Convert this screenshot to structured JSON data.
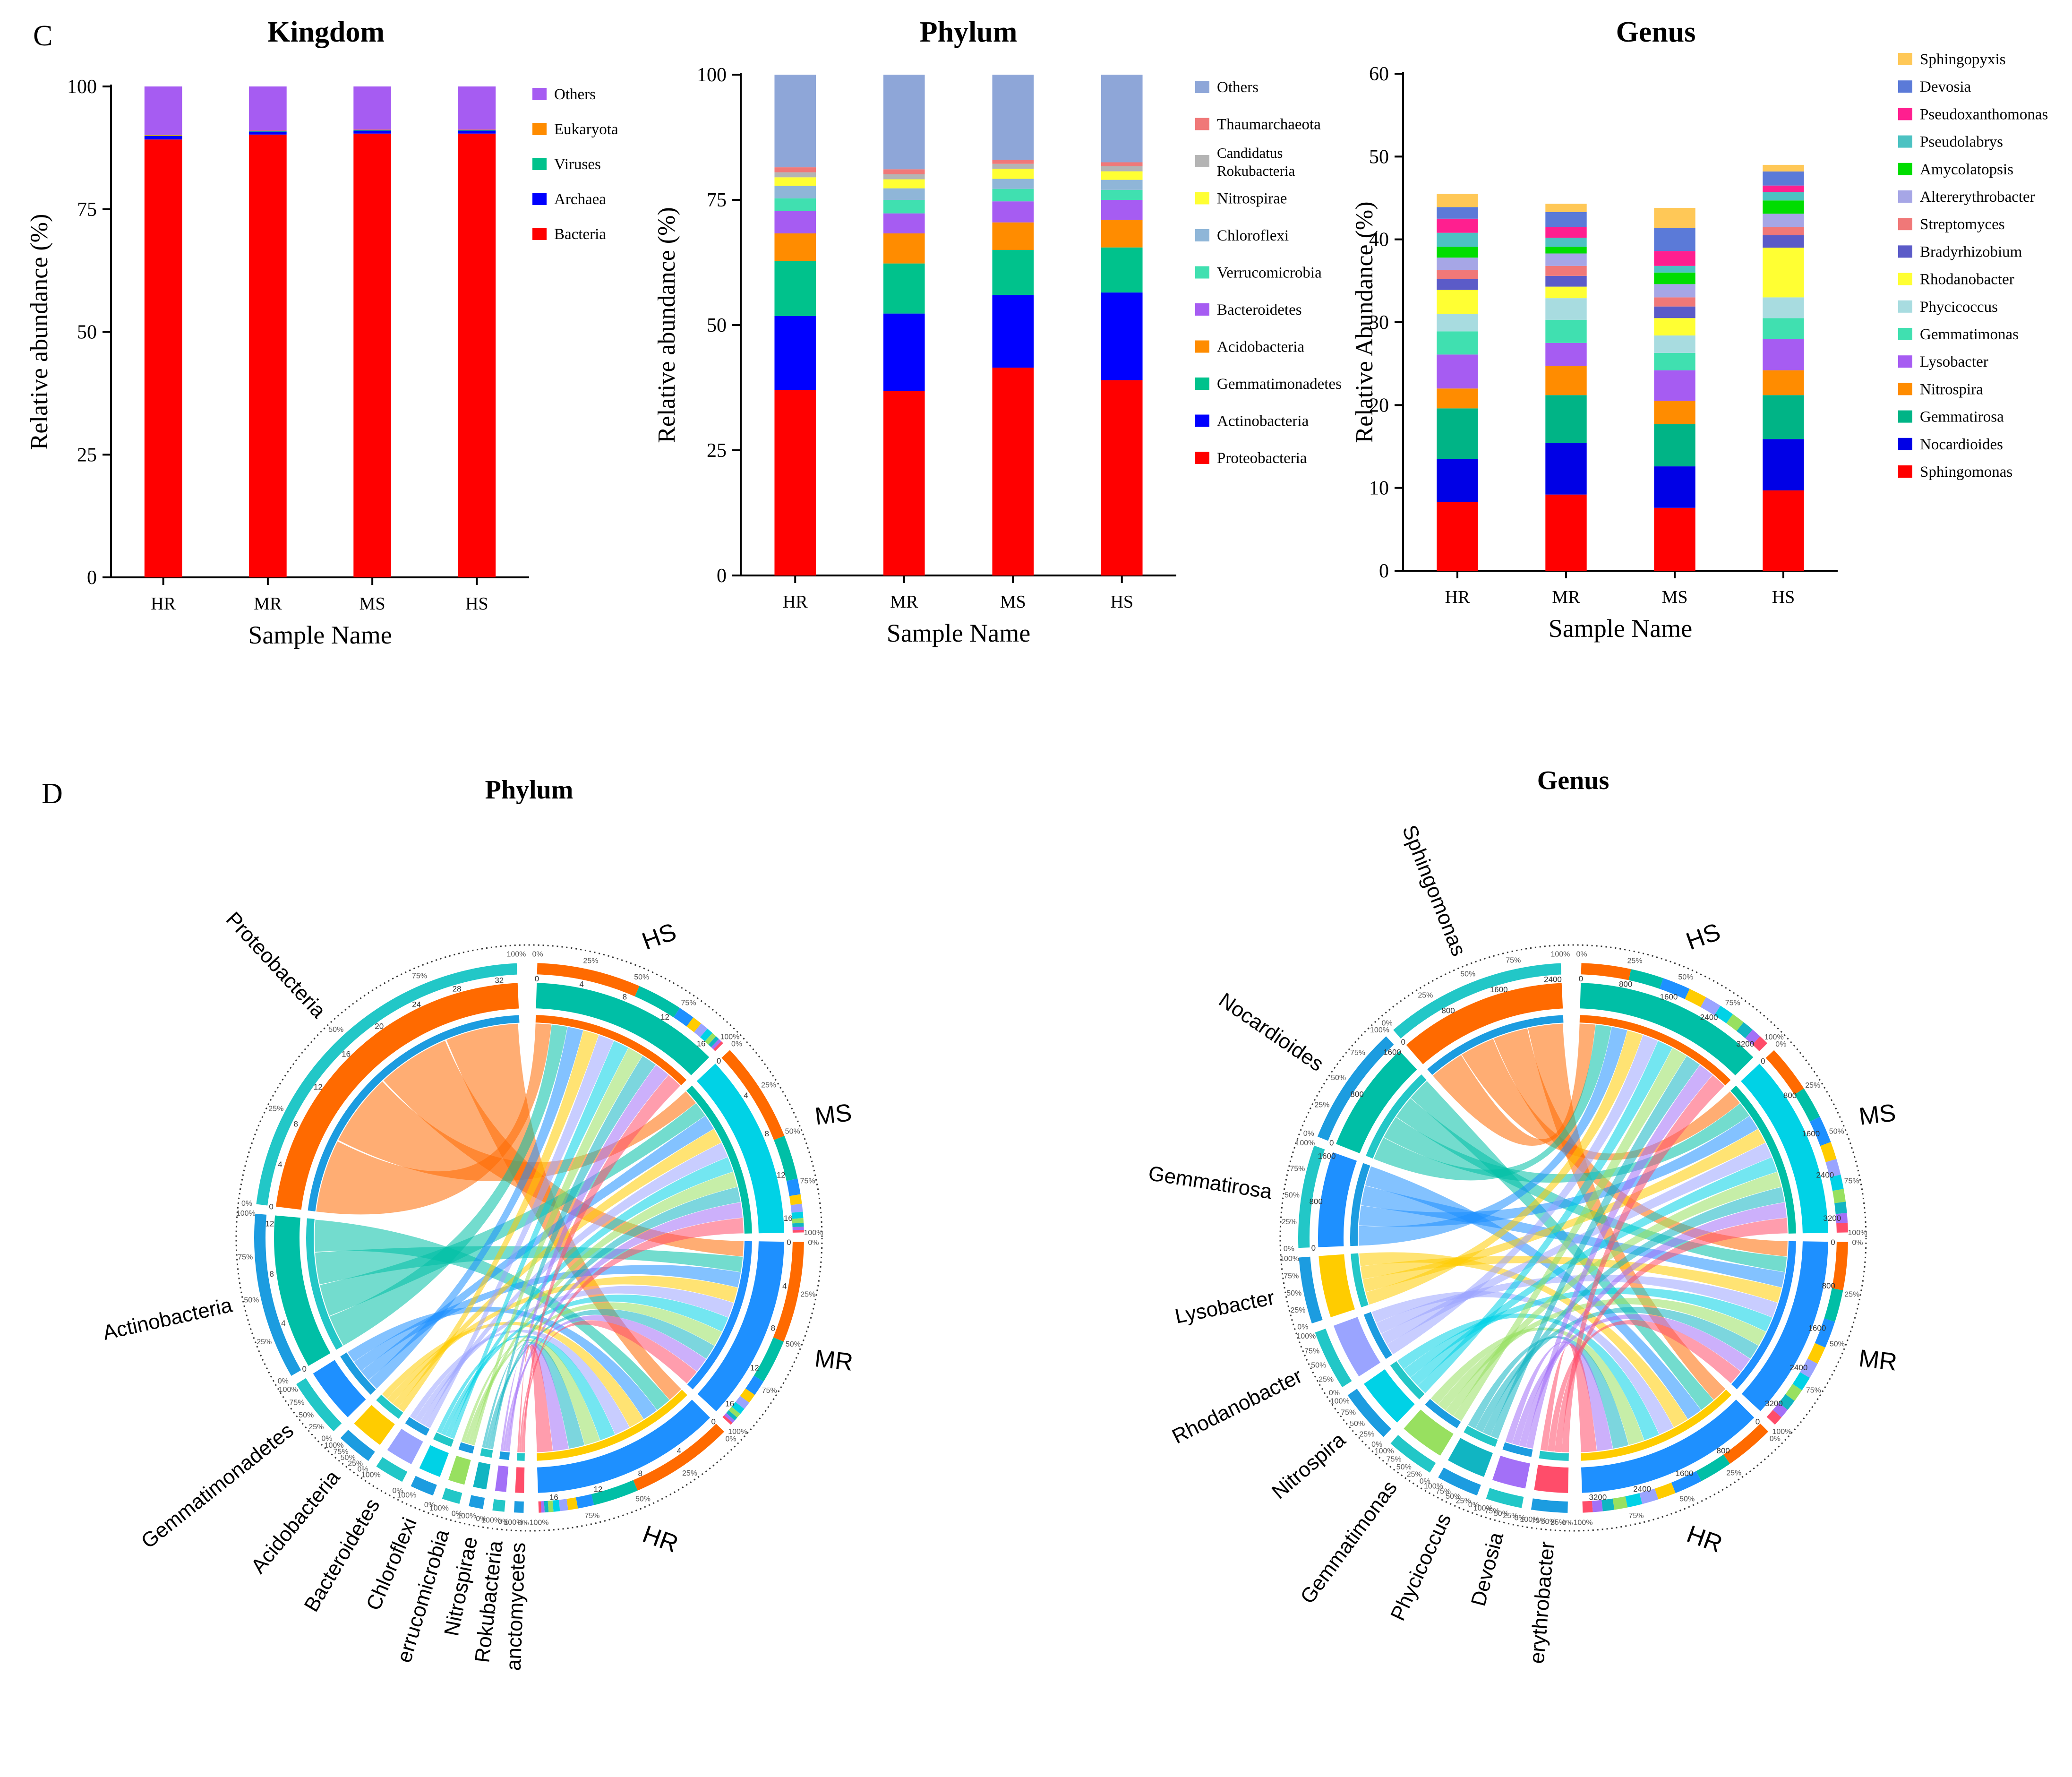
{
  "panel_labels": {
    "c": "C",
    "d": "D"
  },
  "chart_data": [
    {
      "type": "bar",
      "stacked": true,
      "title": "Kingdom",
      "xlabel": "Sample Name",
      "ylabel": "Relative abundance (%)",
      "ylim": [
        0,
        100
      ],
      "yticks": [
        0,
        25,
        50,
        75,
        100
      ],
      "categories": [
        "HR",
        "MR",
        "MS",
        "HS"
      ],
      "series": [
        {
          "name": "Bacteria",
          "color": "#ff0000",
          "values": [
            89.2,
            90.2,
            90.4,
            90.4
          ]
        },
        {
          "name": "Archaea",
          "color": "#0000ff",
          "values": [
            0.7,
            0.6,
            0.6,
            0.6
          ]
        },
        {
          "name": "Viruses",
          "color": "#00c28c",
          "values": [
            0.1,
            0.1,
            0.1,
            0.1
          ]
        },
        {
          "name": "Eukaryota",
          "color": "#ff8c00",
          "values": [
            0.1,
            0.1,
            0.1,
            0.1
          ]
        },
        {
          "name": "Others",
          "color": "#a65cf2",
          "values": [
            9.9,
            9.0,
            8.8,
            8.8
          ]
        }
      ],
      "legend_order": [
        "Others",
        "Eukaryota",
        "Viruses",
        "Archaea",
        "Bacteria"
      ]
    },
    {
      "type": "bar",
      "stacked": true,
      "title": "Phylum",
      "xlabel": "Sample Name",
      "ylabel": "Relative abundance (%)",
      "ylim": [
        0,
        100
      ],
      "yticks": [
        0,
        25,
        50,
        75,
        100
      ],
      "categories": [
        "HR",
        "MR",
        "MS",
        "HS"
      ],
      "series": [
        {
          "name": "Proteobacteria",
          "color": "#ff0000",
          "values": [
            37.0,
            36.8,
            41.5,
            39.0
          ]
        },
        {
          "name": "Actinobacteria",
          "color": "#0000ff",
          "values": [
            14.8,
            15.5,
            14.5,
            17.5
          ]
        },
        {
          "name": "Gemmatimonadetes",
          "color": "#00c28c",
          "values": [
            11.0,
            10.0,
            9.0,
            9.0
          ]
        },
        {
          "name": "Acidobacteria",
          "color": "#ff8c00",
          "values": [
            5.5,
            6.0,
            5.5,
            5.5
          ]
        },
        {
          "name": "Bacteroidetes",
          "color": "#a65cf2",
          "values": [
            4.5,
            4.0,
            4.2,
            4.0
          ]
        },
        {
          "name": "Verrucomicrobia",
          "color": "#40e0b0",
          "values": [
            2.5,
            2.7,
            2.5,
            2.0
          ]
        },
        {
          "name": "Chloroflexi",
          "color": "#8fb6d8",
          "values": [
            2.5,
            2.3,
            2.0,
            2.0
          ]
        },
        {
          "name": "Nitrospirae",
          "color": "#ffff33",
          "values": [
            1.7,
            1.8,
            2.0,
            1.7
          ]
        },
        {
          "name": "Candidatus Rokubacteria",
          "color": "#b4b4b4",
          "values": [
            1.0,
            1.0,
            1.0,
            1.0
          ]
        },
        {
          "name": "Thaumarchaeota",
          "color": "#f07878",
          "values": [
            1.0,
            1.0,
            0.8,
            0.8
          ]
        },
        {
          "name": "Others",
          "color": "#8ea6d8",
          "values": [
            18.5,
            18.9,
            17.0,
            17.5
          ]
        }
      ],
      "legend_order": [
        "Others",
        "Thaumarchaeota",
        "Candidatus Rokubacteria",
        "Nitrospirae",
        "Chloroflexi",
        "Verrucomicrobia",
        "Bacteroidetes",
        "Acidobacteria",
        "Gemmatimonadetes",
        "Actinobacteria",
        "Proteobacteria"
      ]
    },
    {
      "type": "bar",
      "stacked": true,
      "title": "Genus",
      "xlabel": "Sample Name",
      "ylabel": "Relative Abundance (%)",
      "ylim": [
        0,
        60
      ],
      "yticks": [
        0,
        10,
        20,
        30,
        40,
        50,
        60
      ],
      "categories": [
        "HR",
        "MR",
        "MS",
        "HS"
      ],
      "series": [
        {
          "name": "Sphingomonas",
          "color": "#ff0000",
          "values": [
            8.3,
            9.2,
            7.6,
            9.7
          ]
        },
        {
          "name": "Nocardioides",
          "color": "#0000e6",
          "values": [
            5.2,
            6.2,
            5.0,
            6.2
          ]
        },
        {
          "name": "Gemmatirosa",
          "color": "#00b486",
          "values": [
            6.1,
            5.8,
            5.1,
            5.3
          ]
        },
        {
          "name": "Nitrospira",
          "color": "#ff8c00",
          "values": [
            2.4,
            3.5,
            2.8,
            3.0
          ]
        },
        {
          "name": "Lysobacter",
          "color": "#a65cf2",
          "values": [
            4.1,
            2.8,
            3.7,
            3.8
          ]
        },
        {
          "name": "Gemmatimonas",
          "color": "#40e0b0",
          "values": [
            2.8,
            2.8,
            2.1,
            2.5
          ]
        },
        {
          "name": "Phycicoccus",
          "color": "#a8dce0",
          "values": [
            2.1,
            2.6,
            2.1,
            2.5
          ]
        },
        {
          "name": "Rhodanobacter",
          "color": "#ffff33",
          "values": [
            2.9,
            1.4,
            2.1,
            6.0
          ]
        },
        {
          "name": "Bradyrhizobium",
          "color": "#5b5bc8",
          "values": [
            1.3,
            1.3,
            1.4,
            1.5
          ]
        },
        {
          "name": "Streptomyces",
          "color": "#f07878",
          "values": [
            1.1,
            1.2,
            1.1,
            1.0
          ]
        },
        {
          "name": "Altererythrobacter",
          "color": "#a6a6e6",
          "values": [
            1.5,
            1.5,
            1.6,
            1.6
          ]
        },
        {
          "name": "Amycolatopsis",
          "color": "#00dd00",
          "values": [
            1.3,
            0.8,
            1.4,
            1.6
          ]
        },
        {
          "name": "Pseudolabrys",
          "color": "#4cc2c2",
          "values": [
            1.7,
            1.1,
            0.8,
            1.0
          ]
        },
        {
          "name": "Pseudoxanthomonas",
          "color": "#ff1f8f",
          "values": [
            1.7,
            1.3,
            1.8,
            0.8
          ]
        },
        {
          "name": "Devosia",
          "color": "#5b7ad8",
          "values": [
            1.4,
            1.8,
            2.8,
            1.7
          ]
        },
        {
          "name": "Sphingopyxis",
          "color": "#ffc857",
          "values": [
            1.6,
            1.0,
            2.4,
            0.8
          ]
        }
      ],
      "legend_order": [
        "Sphingopyxis",
        "Devosia",
        "Pseudoxanthomonas",
        "Pseudolabrys",
        "Amycolatopsis",
        "Altererythrobacter",
        "Streptomyces",
        "Bradyrhizobium",
        "Rhodanobacter",
        "Phycicoccus",
        "Gemmatimonas",
        "Lysobacter",
        "Nitrospira",
        "Gemmatirosa",
        "Nocardioides",
        "Sphingomonas"
      ]
    },
    {
      "type": "chord",
      "title": "Phylum",
      "sample_labels": [
        "HS",
        "MS",
        "MR",
        "HR"
      ],
      "samples": [
        {
          "name": "HS",
          "value": 17.5
        },
        {
          "name": "MS",
          "value": 17.0
        },
        {
          "name": "MR",
          "value": 17.0
        },
        {
          "name": "HR",
          "value": 17.5
        }
      ],
      "taxa": [
        {
          "name": "Proteobacteria",
          "value": 32
        },
        {
          "name": "Actinobacteria",
          "value": 14
        },
        {
          "name": "Gemmatimonadetes",
          "value": 5
        },
        {
          "name": "Acidobacteria",
          "value": 3
        },
        {
          "name": "Bacteroidetes",
          "value": 2.5
        },
        {
          "name": "Chloroflexi",
          "value": 2
        },
        {
          "name": "Verrucomicrobia",
          "value": 1.5
        },
        {
          "name": "Nitrospirae",
          "value": 1.2
        },
        {
          "name": "Rokubacteria",
          "value": 1
        },
        {
          "name": "Planctomycetes",
          "value": 0.8
        }
      ],
      "taxon_labels_shown": [
        "Proteobacteria",
        "Actinobacteria",
        "Gemmatimonadetes",
        "Acidobacteria",
        "Bacteroidetes",
        "Chloroflexi",
        "errucomicrobia",
        "Nitrospirae",
        "Rokubacteria",
        "anctomycetes"
      ],
      "taxon_ticks": {
        "Proteobacteria": [
          0,
          4,
          8,
          12,
          16,
          20,
          24,
          28,
          32
        ],
        "Actinobacteria": [
          0,
          4,
          8,
          12
        ]
      },
      "sample_ticks": [
        0,
        4,
        8,
        12,
        16
      ],
      "percent_ticks": [
        "0%",
        "25%",
        "50%",
        "75%",
        "100%"
      ]
    },
    {
      "type": "chord",
      "title": "Genus",
      "sample_labels": [
        "HS",
        "MS",
        "MR",
        "HR"
      ],
      "samples": [
        {
          "name": "HS",
          "value": 3300
        },
        {
          "name": "MS",
          "value": 3200
        },
        {
          "name": "MR",
          "value": 3200
        },
        {
          "name": "HR",
          "value": 3300
        }
      ],
      "taxa": [
        {
          "name": "Sphingomonas",
          "value": 3000
        },
        {
          "name": "Nocardioides",
          "value": 2000
        },
        {
          "name": "Gemmatirosa",
          "value": 1700
        },
        {
          "name": "Lysobacter",
          "value": 1100
        },
        {
          "name": "Rhodanobacter",
          "value": 1000
        },
        {
          "name": "Nitrospira",
          "value": 900
        },
        {
          "name": "Gemmatimonas",
          "value": 800
        },
        {
          "name": "Phycicoccus",
          "value": 700
        },
        {
          "name": "Devosia",
          "value": 600
        },
        {
          "name": "Altererythrobacter",
          "value": 600
        }
      ],
      "taxon_labels_shown": [
        "Sphingomonas",
        "Nocardioides",
        "Gemmatirosa",
        "Lysobacter",
        "Rhodanobacter",
        "Nitrospira",
        "Gemmatimonas",
        "Phycicoccus",
        "Devosia",
        "erythrobacter"
      ],
      "taxon_ticks": {
        "Sphingomonas": [
          0,
          800,
          1600,
          2400
        ],
        "Nocardioides": [
          0,
          800,
          1600
        ],
        "Gemmatirosa": [
          0,
          800,
          1600
        ]
      },
      "sample_ticks": [
        0,
        800,
        1600,
        2400,
        3200
      ],
      "percent_ticks": [
        "0%",
        "25%",
        "50%",
        "75%",
        "100%"
      ]
    }
  ],
  "colors": {
    "chord_palette": [
      "#ff6a00",
      "#00bfa6",
      "#1e90ff",
      "#ffcc00",
      "#9aa4ff",
      "#00d2e6",
      "#98e060",
      "#11b5c2",
      "#a370f7",
      "#ff4d6a",
      "#8a3fa0",
      "#2bb673"
    ],
    "outer_ring_pair": [
      "#1c9ce0",
      "#22c7c7"
    ]
  }
}
